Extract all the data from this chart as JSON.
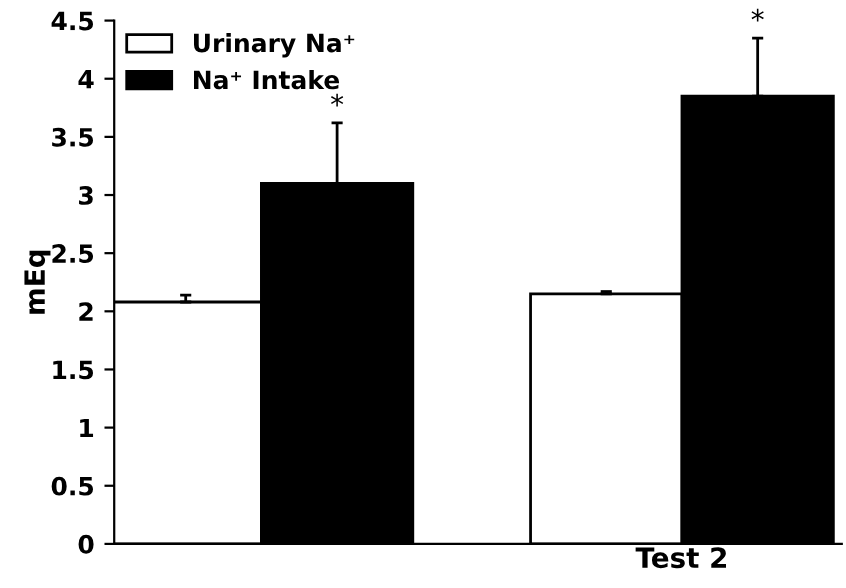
{
  "chart_data": {
    "type": "bar",
    "ylabel": "mEq",
    "categories": [
      null,
      "Test 2"
    ],
    "series": [
      {
        "name": "Urinary Na⁺",
        "color": "#ffffff",
        "values": [
          2.08,
          2.15
        ],
        "errors": [
          0.06,
          0.02
        ]
      },
      {
        "name": "Na⁺ Intake",
        "color": "#000000",
        "values": [
          3.1,
          3.85
        ],
        "errors": [
          0.52,
          0.5
        ]
      }
    ],
    "ylim": [
      0,
      4.5
    ],
    "yticks": [
      0,
      0.5,
      1,
      1.5,
      2,
      2.5,
      3,
      3.5,
      4,
      4.5
    ],
    "legend": "top left",
    "grid": false,
    "annotations": [
      "*",
      "*"
    ]
  }
}
